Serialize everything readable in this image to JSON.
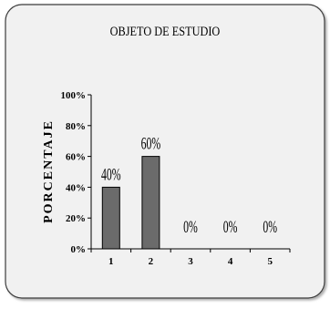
{
  "chart_data": {
    "type": "bar",
    "title": "OBJETO DE ESTUDIO",
    "xlabel": "",
    "ylabel": "PORCENTAJE",
    "categories": [
      "1",
      "2",
      "3",
      "4",
      "5"
    ],
    "values": [
      40,
      60,
      0,
      0,
      0
    ],
    "data_labels": [
      "40%",
      "60%",
      "0%",
      "0%",
      "0%"
    ],
    "y_ticks": [
      "0%",
      "20%",
      "40%",
      "60%",
      "80%",
      "100%"
    ],
    "ylim": [
      0,
      100
    ],
    "grid": false,
    "legend": "none",
    "colors": {
      "bar": "#6b6b6b",
      "panel": "#f1f1f1",
      "background": "#ffffff",
      "axis": "#000000"
    }
  }
}
